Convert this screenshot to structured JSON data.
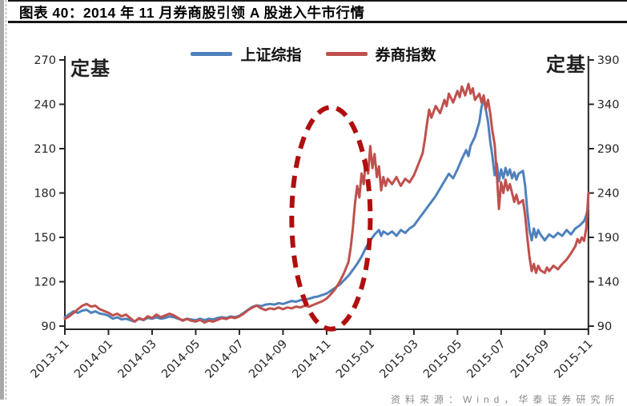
{
  "page": {
    "title": "图表 40：2014 年 11 月券商股引领 A 股进入牛市行情",
    "footer_source": "资料来源：Wind，华泰证券研究所"
  },
  "chart_data": {
    "type": "line",
    "title": "2014 年 11 月券商股引领 A 股进入牛市行情",
    "grid": false,
    "legend_position": "top-center",
    "x_axis": {
      "months_span": 24,
      "tick_labels": [
        "2013-11",
        "2014-01",
        "2014-03",
        "2014-05",
        "2014-07",
        "2014-09",
        "2014-11",
        "2015-01",
        "2015-03",
        "2015-05",
        "2015-07",
        "2015-09",
        "2015-11"
      ]
    },
    "y_axis_left": {
      "label": "定基",
      "min": 90,
      "max": 270,
      "step": 30,
      "ticks": [
        270,
        240,
        210,
        180,
        150,
        120,
        90
      ]
    },
    "y_axis_right": {
      "label": "定基",
      "min": 90,
      "max": 390,
      "step": 50,
      "ticks": [
        390,
        340,
        290,
        240,
        190,
        140,
        90
      ]
    },
    "series": [
      {
        "name": "上证综指",
        "color": "#4f81bd",
        "axis": "left",
        "points": [
          [
            0,
            96
          ],
          [
            0.2,
            98
          ],
          [
            0.4,
            100
          ],
          [
            0.6,
            99
          ],
          [
            0.8,
            100.5
          ],
          [
            1,
            101
          ],
          [
            1.2,
            99
          ],
          [
            1.4,
            100
          ],
          [
            1.6,
            98.5
          ],
          [
            1.8,
            98
          ],
          [
            2,
            97
          ],
          [
            2.2,
            95
          ],
          [
            2.4,
            96
          ],
          [
            2.6,
            94.5
          ],
          [
            2.8,
            95
          ],
          [
            3,
            94
          ],
          [
            3.2,
            93
          ],
          [
            3.4,
            95
          ],
          [
            3.6,
            94
          ],
          [
            3.8,
            95.5
          ],
          [
            4,
            95
          ],
          [
            4.2,
            96
          ],
          [
            4.4,
            95
          ],
          [
            4.6,
            95.5
          ],
          [
            4.8,
            96.5
          ],
          [
            5,
            96
          ],
          [
            5.2,
            95
          ],
          [
            5.4,
            94
          ],
          [
            5.6,
            95
          ],
          [
            5.8,
            94.5
          ],
          [
            6,
            94
          ],
          [
            6.2,
            95
          ],
          [
            6.4,
            94
          ],
          [
            6.6,
            95
          ],
          [
            6.8,
            94.5
          ],
          [
            7,
            95.5
          ],
          [
            7.2,
            96
          ],
          [
            7.4,
            95.5
          ],
          [
            7.6,
            96.5
          ],
          [
            7.8,
            96
          ],
          [
            8,
            97
          ],
          [
            8.2,
            99
          ],
          [
            8.4,
            101
          ],
          [
            8.6,
            103
          ],
          [
            8.8,
            104
          ],
          [
            9,
            103.5
          ],
          [
            9.2,
            104.5
          ],
          [
            9.4,
            105
          ],
          [
            9.6,
            104.5
          ],
          [
            9.8,
            105.5
          ],
          [
            10,
            105
          ],
          [
            10.2,
            106
          ],
          [
            10.4,
            107
          ],
          [
            10.6,
            106.5
          ],
          [
            10.8,
            107.5
          ],
          [
            11,
            108
          ],
          [
            11.2,
            108.5
          ],
          [
            11.4,
            109.5
          ],
          [
            11.6,
            110
          ],
          [
            11.8,
            111
          ],
          [
            12,
            112
          ],
          [
            12.2,
            114
          ],
          [
            12.4,
            116
          ],
          [
            12.6,
            118
          ],
          [
            12.8,
            121
          ],
          [
            13,
            124
          ],
          [
            13.2,
            128
          ],
          [
            13.4,
            132
          ],
          [
            13.6,
            137
          ],
          [
            13.8,
            143
          ],
          [
            14,
            148
          ],
          [
            14.2,
            152
          ],
          [
            14.4,
            155
          ],
          [
            14.5,
            151
          ],
          [
            14.6,
            154
          ],
          [
            14.8,
            152
          ],
          [
            15,
            154
          ],
          [
            15.2,
            151
          ],
          [
            15.4,
            155
          ],
          [
            15.6,
            153
          ],
          [
            15.8,
            156
          ],
          [
            16,
            158
          ],
          [
            16.2,
            162
          ],
          [
            16.4,
            166
          ],
          [
            16.6,
            170
          ],
          [
            16.8,
            174
          ],
          [
            17,
            178
          ],
          [
            17.2,
            183
          ],
          [
            17.4,
            188
          ],
          [
            17.6,
            193
          ],
          [
            17.8,
            190
          ],
          [
            18,
            196
          ],
          [
            18.2,
            203
          ],
          [
            18.4,
            209
          ],
          [
            18.5,
            205
          ],
          [
            18.6,
            212
          ],
          [
            18.8,
            218
          ],
          [
            19,
            228
          ],
          [
            19.1,
            238
          ],
          [
            19.2,
            244
          ],
          [
            19.3,
            236
          ],
          [
            19.4,
            228
          ],
          [
            19.5,
            215
          ],
          [
            19.6,
            205
          ],
          [
            19.7,
            192
          ],
          [
            19.8,
            200
          ],
          [
            19.9,
            188
          ],
          [
            20,
            196
          ],
          [
            20.1,
            190
          ],
          [
            20.2,
            197
          ],
          [
            20.3,
            192
          ],
          [
            20.4,
            196
          ],
          [
            20.5,
            190
          ],
          [
            20.6,
            194
          ],
          [
            20.7,
            189
          ],
          [
            20.8,
            193
          ],
          [
            21,
            195
          ],
          [
            21.1,
            185
          ],
          [
            21.2,
            168
          ],
          [
            21.3,
            155
          ],
          [
            21.4,
            148
          ],
          [
            21.5,
            156
          ],
          [
            21.6,
            150
          ],
          [
            21.7,
            155
          ],
          [
            21.8,
            152
          ],
          [
            22,
            148
          ],
          [
            22.2,
            152
          ],
          [
            22.4,
            150
          ],
          [
            22.6,
            153
          ],
          [
            22.8,
            151
          ],
          [
            23,
            155
          ],
          [
            23.2,
            152
          ],
          [
            23.4,
            156
          ],
          [
            23.6,
            158
          ],
          [
            23.8,
            161
          ],
          [
            23.9,
            165
          ],
          [
            24,
            171
          ]
        ]
      },
      {
        "name": "券商指数",
        "color": "#c0504d",
        "axis": "right",
        "points": [
          [
            0,
            98
          ],
          [
            0.2,
            101
          ],
          [
            0.4,
            105
          ],
          [
            0.6,
            109
          ],
          [
            0.8,
            113
          ],
          [
            1,
            115
          ],
          [
            1.2,
            112
          ],
          [
            1.4,
            113
          ],
          [
            1.6,
            109
          ],
          [
            1.8,
            107
          ],
          [
            2,
            105
          ],
          [
            2.2,
            102
          ],
          [
            2.4,
            104
          ],
          [
            2.6,
            101
          ],
          [
            2.8,
            103
          ],
          [
            3,
            99
          ],
          [
            3.2,
            95
          ],
          [
            3.4,
            99
          ],
          [
            3.6,
            97
          ],
          [
            3.8,
            101
          ],
          [
            4,
            99
          ],
          [
            4.2,
            103
          ],
          [
            4.4,
            100
          ],
          [
            4.6,
            102
          ],
          [
            4.8,
            104
          ],
          [
            5,
            102
          ],
          [
            5.2,
            99
          ],
          [
            5.4,
            96
          ],
          [
            5.6,
            98
          ],
          [
            5.8,
            96
          ],
          [
            6,
            95
          ],
          [
            6.2,
            97
          ],
          [
            6.4,
            94
          ],
          [
            6.6,
            96
          ],
          [
            6.8,
            95
          ],
          [
            7,
            97
          ],
          [
            7.2,
            99
          ],
          [
            7.4,
            98
          ],
          [
            7.6,
            100
          ],
          [
            7.8,
            99
          ],
          [
            8,
            101
          ],
          [
            8.2,
            104
          ],
          [
            8.4,
            108
          ],
          [
            8.6,
            111
          ],
          [
            8.8,
            113
          ],
          [
            9,
            110
          ],
          [
            9.2,
            108
          ],
          [
            9.4,
            110
          ],
          [
            9.6,
            109
          ],
          [
            9.8,
            111
          ],
          [
            10,
            109
          ],
          [
            10.2,
            111
          ],
          [
            10.4,
            110
          ],
          [
            10.6,
            112
          ],
          [
            10.8,
            111
          ],
          [
            11,
            113
          ],
          [
            11.2,
            112
          ],
          [
            11.4,
            114
          ],
          [
            11.6,
            116
          ],
          [
            11.8,
            118
          ],
          [
            12,
            121
          ],
          [
            12.2,
            126
          ],
          [
            12.4,
            132
          ],
          [
            12.6,
            140
          ],
          [
            12.8,
            150
          ],
          [
            13,
            162
          ],
          [
            13.1,
            178
          ],
          [
            13.2,
            200
          ],
          [
            13.3,
            228
          ],
          [
            13.4,
            248
          ],
          [
            13.5,
            235
          ],
          [
            13.6,
            262
          ],
          [
            13.7,
            250
          ],
          [
            13.8,
            278
          ],
          [
            13.9,
            262
          ],
          [
            14,
            293
          ],
          [
            14.1,
            268
          ],
          [
            14.2,
            284
          ],
          [
            14.3,
            258
          ],
          [
            14.4,
            270
          ],
          [
            14.5,
            243
          ],
          [
            14.6,
            258
          ],
          [
            14.7,
            248
          ],
          [
            14.8,
            256
          ],
          [
            15,
            250
          ],
          [
            15.2,
            258
          ],
          [
            15.4,
            248
          ],
          [
            15.6,
            256
          ],
          [
            15.8,
            252
          ],
          [
            16,
            260
          ],
          [
            16.2,
            272
          ],
          [
            16.4,
            285
          ],
          [
            16.5,
            300
          ],
          [
            16.6,
            318
          ],
          [
            16.7,
            334
          ],
          [
            16.8,
            325
          ],
          [
            17,
            338
          ],
          [
            17.2,
            330
          ],
          [
            17.4,
            345
          ],
          [
            17.5,
            338
          ],
          [
            17.6,
            352
          ],
          [
            17.8,
            342
          ],
          [
            18,
            355
          ],
          [
            18.1,
            348
          ],
          [
            18.2,
            360
          ],
          [
            18.35,
            350
          ],
          [
            18.5,
            363
          ],
          [
            18.6,
            352
          ],
          [
            18.7,
            358
          ],
          [
            18.8,
            345
          ],
          [
            19,
            352
          ],
          [
            19.1,
            342
          ],
          [
            19.2,
            350
          ],
          [
            19.3,
            335
          ],
          [
            19.4,
            345
          ],
          [
            19.5,
            330
          ],
          [
            19.6,
            310
          ],
          [
            19.7,
            295
          ],
          [
            19.8,
            262
          ],
          [
            19.9,
            222
          ],
          [
            20,
            252
          ],
          [
            20.1,
            240
          ],
          [
            20.2,
            255
          ],
          [
            20.3,
            243
          ],
          [
            20.4,
            250
          ],
          [
            20.5,
            240
          ],
          [
            20.6,
            230
          ],
          [
            20.7,
            238
          ],
          [
            20.8,
            228
          ],
          [
            21,
            232
          ],
          [
            21.1,
            215
          ],
          [
            21.2,
            190
          ],
          [
            21.3,
            168
          ],
          [
            21.4,
            152
          ],
          [
            21.5,
            160
          ],
          [
            21.6,
            150
          ],
          [
            21.7,
            158
          ],
          [
            21.8,
            153
          ],
          [
            22,
            150
          ],
          [
            22.1,
            156
          ],
          [
            22.2,
            152
          ],
          [
            22.4,
            158
          ],
          [
            22.6,
            154
          ],
          [
            22.8,
            160
          ],
          [
            23,
            165
          ],
          [
            23.2,
            172
          ],
          [
            23.4,
            180
          ],
          [
            23.5,
            188
          ],
          [
            23.6,
            184
          ],
          [
            23.7,
            190
          ],
          [
            23.8,
            186
          ],
          [
            23.9,
            200
          ],
          [
            24,
            240
          ]
        ]
      }
    ],
    "annotation_ellipse": {
      "center_month": 12.2,
      "center_value_left": 163,
      "radius_months": 1.8,
      "radius_value_left": 75,
      "color": "#b00f0f",
      "style": "dashed"
    }
  }
}
